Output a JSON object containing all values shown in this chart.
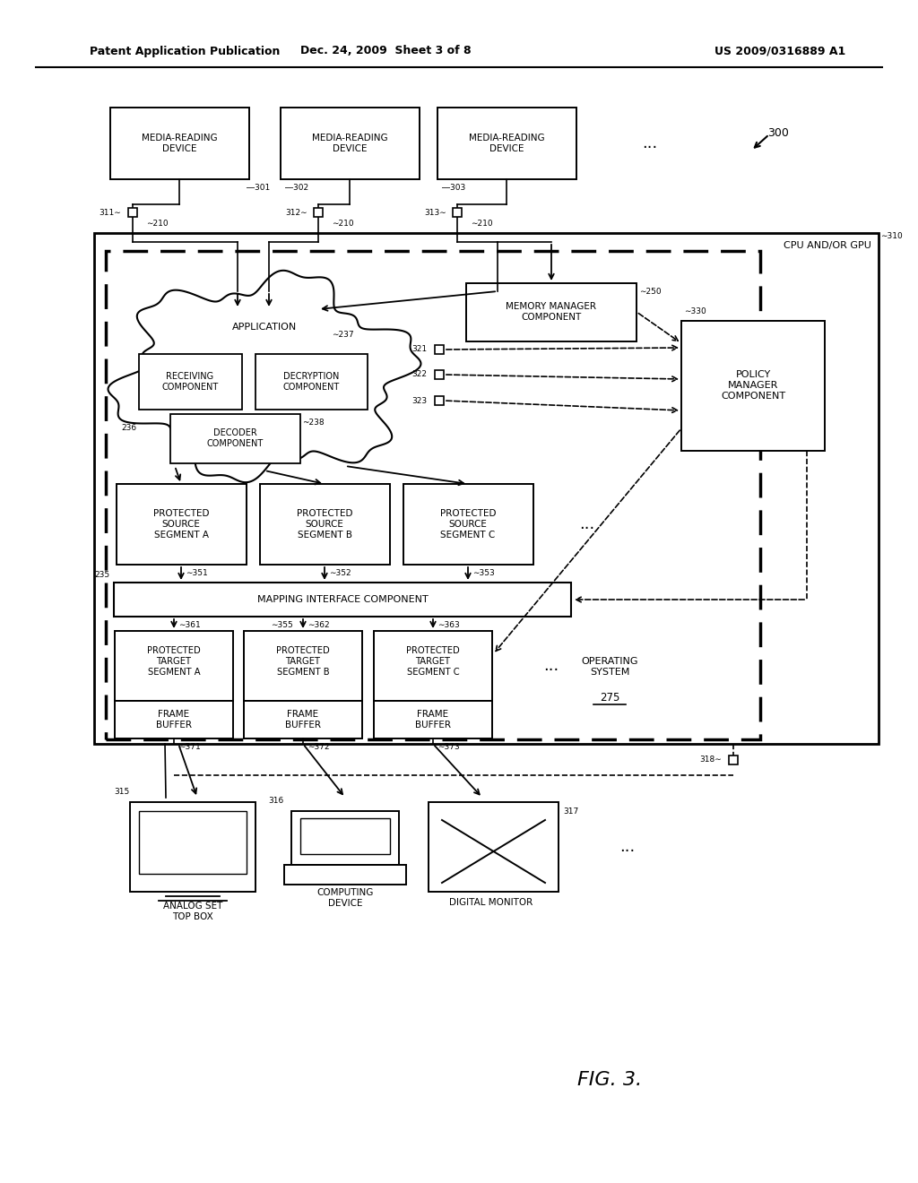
{
  "bg_color": "#ffffff",
  "header_left": "Patent Application Publication",
  "header_mid": "Dec. 24, 2009  Sheet 3 of 8",
  "header_right": "US 2009/0316889 A1",
  "fig_label": "FIG. 3.",
  "ref_300": "300",
  "media_devices": [
    "MEDIA-READING\nDEVICE",
    "MEDIA-READING\nDEVICE",
    "MEDIA-READING\nDEVICE"
  ],
  "media_refs": [
    "301",
    "302",
    "303"
  ],
  "cpu_label": "CPU AND/OR GPU",
  "cpu_ref": "310",
  "app_label": "APPLICATION",
  "app_ref": "237",
  "receiving_label": "RECEIVING\nCOMPONENT",
  "decryption_label": "DECRYPTION\nCOMPONENT",
  "decoder_label": "DECODER\nCOMPONENT",
  "decoder_ref": "~238",
  "app_region_ref": "236",
  "memory_label": "MEMORY MANAGER\nCOMPONENT",
  "memory_ref": "250",
  "policy_label": "POLICY\nMANAGER\nCOMPONENT",
  "policy_ref": "330",
  "port_refs": [
    "321",
    "322",
    "323"
  ],
  "protected_source_ref": "235",
  "src_seg_labels": [
    "PROTECTED\nSOURCE\nSEGMENT A",
    "PROTECTED\nSOURCE\nSEGMENT B",
    "PROTECTED\nSOURCE\nSEGMENT C"
  ],
  "src_seg_refs": [
    "351",
    "352",
    "353"
  ],
  "mapping_label": "MAPPING INTERFACE COMPONENT",
  "mapping_ref": "355",
  "tgt_seg_refs_top": [
    "361",
    "362",
    "363"
  ],
  "tgt_seg_labels": [
    "PROTECTED\nTARGET\nSEGMENT A",
    "PROTECTED\nTARGET\nSEGMENT B",
    "PROTECTED\nTARGET\nSEGMENT C"
  ],
  "frame_label": "FRAME\nBUFFER",
  "tgt_seg_refs": [
    "371",
    "372",
    "373"
  ],
  "os_label": "OPERATING\nSYSTEM",
  "os_ref": "275",
  "output_labels": [
    "ANALOG SET\nTOP BOX",
    "COMPUTING\nDEVICE",
    "DIGITAL MONITOR"
  ],
  "output_refs": [
    "315",
    "316",
    "317"
  ],
  "conn318": "318"
}
